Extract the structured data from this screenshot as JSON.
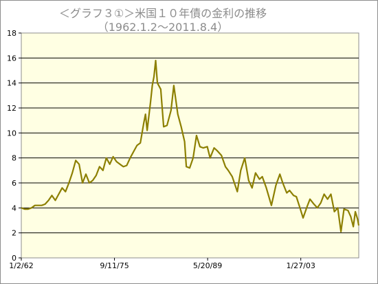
{
  "chart_data": {
    "type": "line",
    "title": "＜グラフ３①＞米国１０年債の金利の推移",
    "subtitle": "（1962.1.2～2011.8.4）",
    "xlabel": "",
    "ylabel": "",
    "ylim": [
      0,
      18
    ],
    "y_ticks": [
      0,
      2,
      4,
      6,
      8,
      10,
      12,
      14,
      16,
      18
    ],
    "xlim": [
      "1962-01-02",
      "2011-08-04"
    ],
    "x_ticks": [
      {
        "label": "1/2/62",
        "date": "1962-01-02"
      },
      {
        "label": "9/11/75",
        "date": "1975-09-11"
      },
      {
        "label": "5/20/89",
        "date": "1989-05-20"
      },
      {
        "label": "1/27/03",
        "date": "2003-01-27"
      }
    ],
    "grid": "horizontal",
    "legend": "none",
    "series": [
      {
        "color": "#8c7f00",
        "x": [
          "1962-01-02",
          "1962-07-01",
          "1963-01-01",
          "1963-07-01",
          "1964-01-01",
          "1964-07-01",
          "1965-01-01",
          "1965-07-01",
          "1966-01-01",
          "1966-07-01",
          "1967-01-01",
          "1967-07-01",
          "1968-01-01",
          "1968-07-01",
          "1969-01-01",
          "1969-07-01",
          "1970-01-01",
          "1970-07-01",
          "1971-01-01",
          "1971-07-01",
          "1972-01-01",
          "1972-07-01",
          "1973-01-01",
          "1973-07-01",
          "1974-01-01",
          "1974-07-01",
          "1975-01-01",
          "1975-07-01",
          "1976-01-01",
          "1976-07-01",
          "1977-01-01",
          "1977-07-01",
          "1978-01-01",
          "1978-07-01",
          "1979-01-01",
          "1979-07-01",
          "1980-01-01",
          "1980-04-01",
          "1980-07-01",
          "1981-01-01",
          "1981-04-01",
          "1981-07-01",
          "1981-09-30",
          "1982-01-01",
          "1982-07-01",
          "1982-12-01",
          "1983-06-01",
          "1984-01-01",
          "1984-06-01",
          "1985-01-01",
          "1985-07-01",
          "1986-01-01",
          "1986-04-01",
          "1986-10-01",
          "1987-04-01",
          "1987-10-01",
          "1988-04-01",
          "1988-10-01",
          "1989-05-01",
          "1989-10-01",
          "1990-05-01",
          "1990-10-01",
          "1991-06-01",
          "1992-01-01",
          "1992-06-01",
          "1993-01-01",
          "1993-10-01",
          "1994-04-01",
          "1994-11-01",
          "1995-06-01",
          "1995-12-01",
          "1996-06-01",
          "1997-01-01",
          "1997-06-01",
          "1998-01-01",
          "1998-10-01",
          "1999-06-01",
          "2000-01-01",
          "2000-06-01",
          "2001-01-01",
          "2001-06-01",
          "2002-01-01",
          "2002-06-01",
          "2003-01-01",
          "2003-06-01",
          "2004-01-01",
          "2004-06-01",
          "2005-01-01",
          "2005-07-01",
          "2006-01-01",
          "2006-07-01",
          "2007-01-01",
          "2007-07-01",
          "2008-01-01",
          "2008-07-01",
          "2008-12-20",
          "2009-06-01",
          "2010-01-01",
          "2010-06-01",
          "2010-10-15",
          "2011-02-01",
          "2011-06-01",
          "2011-08-04"
        ],
        "values": [
          4.0,
          3.9,
          3.9,
          4.0,
          4.2,
          4.2,
          4.2,
          4.3,
          4.6,
          5.0,
          4.6,
          5.1,
          5.6,
          5.3,
          6.0,
          6.8,
          7.8,
          7.5,
          6.0,
          6.7,
          6.0,
          6.2,
          6.6,
          7.3,
          7.0,
          8.0,
          7.5,
          8.1,
          7.7,
          7.5,
          7.3,
          7.4,
          8.0,
          8.5,
          9.0,
          9.2,
          10.8,
          11.5,
          10.2,
          12.5,
          13.8,
          14.5,
          15.8,
          14.0,
          13.5,
          10.5,
          10.6,
          11.8,
          13.8,
          11.5,
          10.5,
          9.3,
          7.3,
          7.2,
          8.0,
          9.8,
          8.9,
          8.8,
          8.9,
          8.0,
          8.8,
          8.6,
          8.2,
          7.3,
          7.0,
          6.5,
          5.3,
          7.0,
          8.0,
          6.2,
          5.6,
          6.8,
          6.3,
          6.5,
          5.6,
          4.2,
          5.8,
          6.7,
          6.0,
          5.2,
          5.4,
          5.0,
          4.9,
          3.9,
          3.2,
          4.1,
          4.7,
          4.3,
          4.0,
          4.4,
          5.1,
          4.7,
          5.1,
          3.7,
          4.0,
          2.1,
          3.9,
          3.8,
          3.3,
          2.5,
          3.7,
          3.1,
          2.6
        ]
      }
    ]
  }
}
